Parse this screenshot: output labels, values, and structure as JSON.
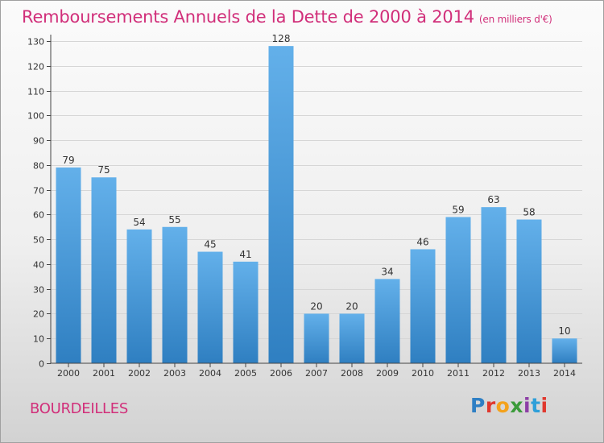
{
  "header": {
    "title": "Remboursements Annuels de la Dette de 2000 à 2014",
    "subtitle": "(en milliers d'€)"
  },
  "footer": {
    "commune": "BOURDEILLES",
    "logo": [
      "P",
      "r",
      "o",
      "x",
      "i",
      "t",
      "i"
    ]
  },
  "colors": {
    "title": "#d12f7a",
    "bar_top": "#63b0ea",
    "bar_bottom": "#2f7fc1"
  },
  "chart_data": {
    "type": "bar",
    "title": "Remboursements Annuels de la Dette de 2000 à 2014",
    "subtitle": "(en milliers d'€)",
    "xlabel": "",
    "ylabel": "",
    "categories": [
      "2000",
      "2001",
      "2002",
      "2003",
      "2004",
      "2005",
      "2006",
      "2007",
      "2008",
      "2009",
      "2010",
      "2011",
      "2012",
      "2013",
      "2014"
    ],
    "values": [
      79,
      75,
      54,
      55,
      45,
      41,
      128,
      20,
      20,
      34,
      46,
      59,
      63,
      58,
      10
    ],
    "ylim": [
      0,
      130
    ],
    "yticks": [
      0,
      10,
      20,
      30,
      40,
      50,
      60,
      70,
      80,
      90,
      100,
      110,
      120,
      130
    ],
    "grid": true,
    "data_labels": true
  }
}
